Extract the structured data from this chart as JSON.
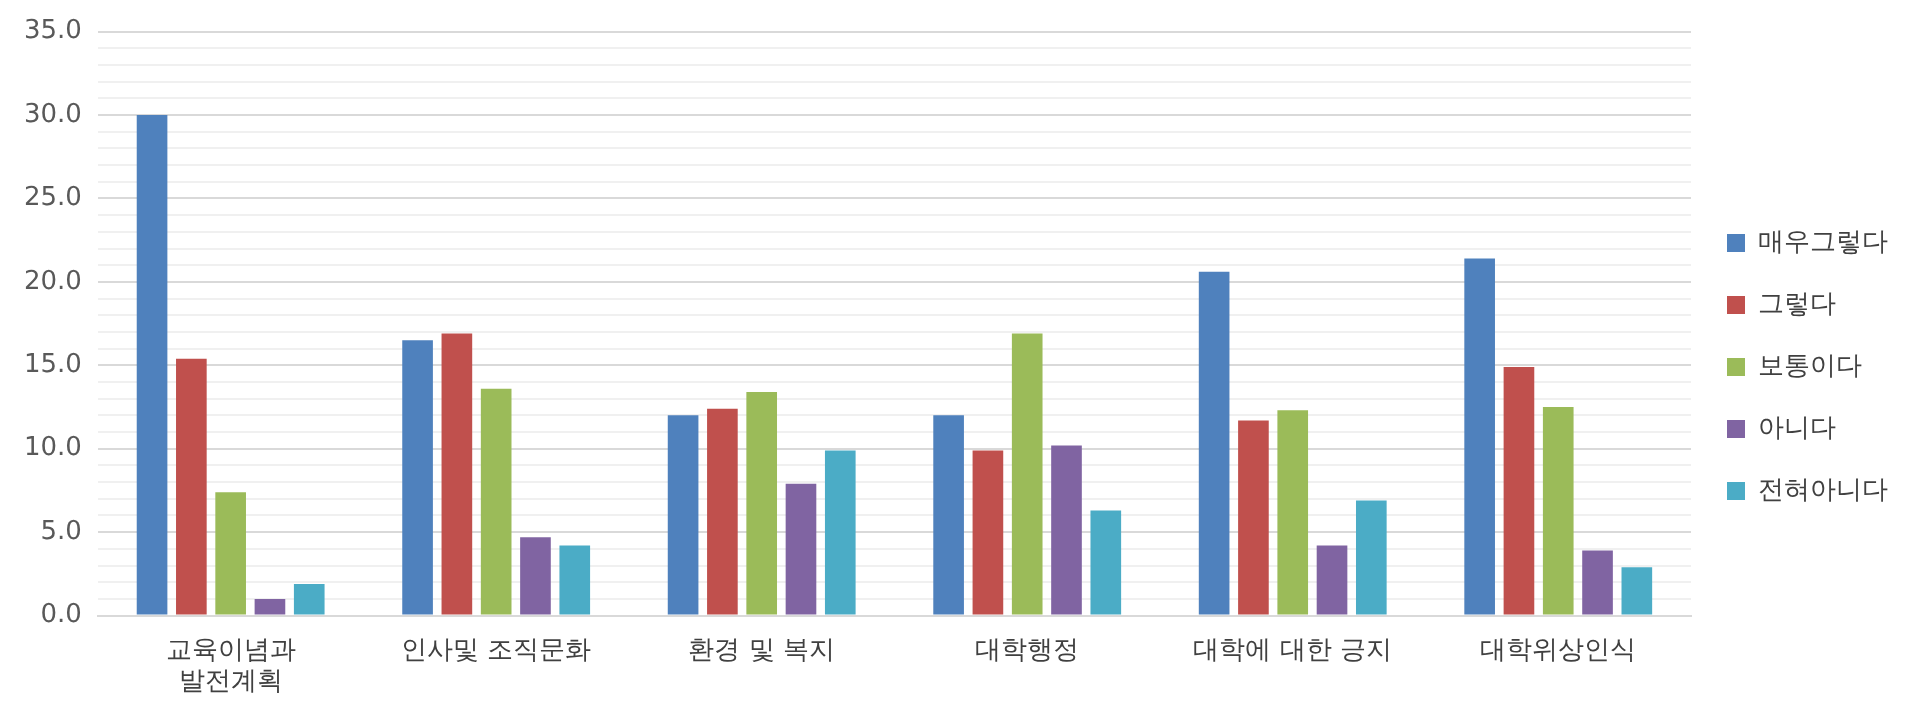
{
  "chart_data": {
    "type": "bar",
    "categories": [
      "교육이념과\n발전계획",
      "인사및 조직문화",
      "환경 및 복지",
      "대학행정",
      "대학에 대한 긍지",
      "대학위상인식"
    ],
    "series": [
      {
        "name": "매우그렇다",
        "color": "#4f81bd",
        "values": [
          30.0,
          16.5,
          12.0,
          12.0,
          20.6,
          21.4
        ]
      },
      {
        "name": "그렇다",
        "color": "#c0504d",
        "values": [
          15.4,
          16.9,
          12.4,
          9.9,
          11.7,
          14.9
        ]
      },
      {
        "name": "보통이다",
        "color": "#9bbb59",
        "values": [
          7.4,
          13.6,
          13.4,
          16.9,
          12.3,
          12.5
        ]
      },
      {
        "name": "아니다",
        "color": "#8064a2",
        "values": [
          1.0,
          4.7,
          7.9,
          10.2,
          4.2,
          3.9
        ]
      },
      {
        "name": "전혀아니다",
        "color": "#4bacc6",
        "values": [
          1.9,
          4.2,
          9.9,
          6.3,
          6.9,
          2.9
        ]
      }
    ],
    "ylim": [
      0,
      35
    ],
    "yticks": [
      {
        "value": 0,
        "label": "0.0"
      },
      {
        "value": 1,
        "label": null
      },
      {
        "value": 2,
        "label": null
      },
      {
        "value": 3,
        "label": null
      },
      {
        "value": 4,
        "label": null
      },
      {
        "value": 5,
        "label": "5.0"
      },
      {
        "value": 6,
        "label": null
      },
      {
        "value": 7,
        "label": null
      },
      {
        "value": 8,
        "label": null
      },
      {
        "value": 9,
        "label": null
      },
      {
        "value": 10,
        "label": "10.0"
      },
      {
        "value": 11,
        "label": null
      },
      {
        "value": 12,
        "label": null
      },
      {
        "value": 13,
        "label": null
      },
      {
        "value": 14,
        "label": null
      },
      {
        "value": 15,
        "label": "15.0"
      },
      {
        "value": 16,
        "label": null
      },
      {
        "value": 17,
        "label": null
      },
      {
        "value": 18,
        "label": null
      },
      {
        "value": 19,
        "label": null
      },
      {
        "value": 20,
        "label": "20.0"
      },
      {
        "value": 21,
        "label": null
      },
      {
        "value": 22,
        "label": null
      },
      {
        "value": 23,
        "label": null
      },
      {
        "value": 24,
        "label": null
      },
      {
        "value": 25,
        "label": "25.0"
      },
      {
        "value": 26,
        "label": null
      },
      {
        "value": 27,
        "label": null
      },
      {
        "value": 28,
        "label": null
      },
      {
        "value": 29,
        "label": null
      },
      {
        "value": 30,
        "label": "30.0"
      },
      {
        "value": 31,
        "label": null
      },
      {
        "value": 32,
        "label": null
      },
      {
        "value": 33,
        "label": null
      },
      {
        "value": 34,
        "label": null
      },
      {
        "value": 35,
        "label": "35.0"
      }
    ],
    "grid": "y",
    "legend": "right"
  }
}
